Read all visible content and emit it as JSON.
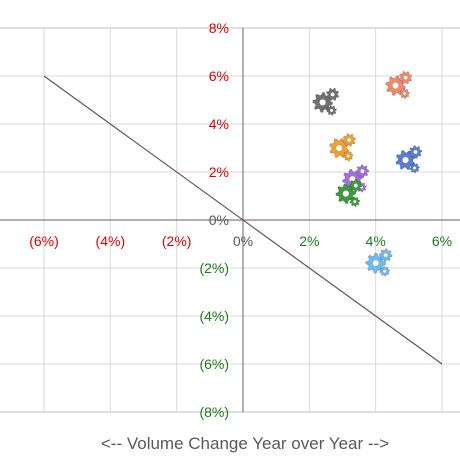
{
  "chart_data": {
    "type": "scatter",
    "xlabel": "<-- Volume Change Year over Year -->",
    "ylabel": "",
    "xlim": [
      -0.06,
      0.06
    ],
    "ylim": [
      -0.08,
      0.08
    ],
    "grid": true,
    "x_ticks": [
      {
        "value": -0.06,
        "label": "(6%)",
        "color": "#e00000"
      },
      {
        "value": -0.04,
        "label": "(4%)",
        "color": "#e00000"
      },
      {
        "value": -0.02,
        "label": "(2%)",
        "color": "#e00000"
      },
      {
        "value": 0.0,
        "label": "0%",
        "color": "#595959"
      },
      {
        "value": 0.02,
        "label": "2%",
        "color": "#1e7a1e"
      },
      {
        "value": 0.04,
        "label": "4%",
        "color": "#1e7a1e"
      },
      {
        "value": 0.06,
        "label": "6%",
        "color": "#1e7a1e"
      }
    ],
    "y_ticks": [
      {
        "value": 0.08,
        "label": "8%",
        "color": "#e00000"
      },
      {
        "value": 0.06,
        "label": "6%",
        "color": "#e00000"
      },
      {
        "value": 0.04,
        "label": "4%",
        "color": "#e00000"
      },
      {
        "value": 0.02,
        "label": "2%",
        "color": "#e00000"
      },
      {
        "value": 0.0,
        "label": "0%",
        "color": "#595959"
      },
      {
        "value": -0.02,
        "label": "(2%)",
        "color": "#1e7a1e"
      },
      {
        "value": -0.04,
        "label": "(4%)",
        "color": "#1e7a1e"
      },
      {
        "value": -0.06,
        "label": "(6%)",
        "color": "#1e7a1e"
      },
      {
        "value": -0.08,
        "label": "(8%)",
        "color": "#1e7a1e"
      }
    ],
    "reference_line": {
      "from": [
        -0.06,
        0.06
      ],
      "to": [
        0.06,
        -0.06
      ],
      "color": "#6b4f5a"
    },
    "points": [
      {
        "x": 0.024,
        "y": 0.049,
        "icon": "gear-icon",
        "color": "#707070"
      },
      {
        "x": 0.046,
        "y": 0.056,
        "icon": "gear-icon",
        "color": "#ee8a6c"
      },
      {
        "x": 0.029,
        "y": 0.03,
        "icon": "gear-icon",
        "color": "#f0a030"
      },
      {
        "x": 0.049,
        "y": 0.025,
        "icon": "gear-icon",
        "color": "#5b7fd0"
      },
      {
        "x": 0.033,
        "y": 0.017,
        "icon": "gear-icon",
        "color": "#a070e0"
      },
      {
        "x": 0.031,
        "y": 0.011,
        "icon": "gear-icon",
        "color": "#3f9a3f"
      },
      {
        "x": 0.04,
        "y": -0.018,
        "icon": "gear-icon",
        "color": "#70b8f0"
      }
    ]
  }
}
